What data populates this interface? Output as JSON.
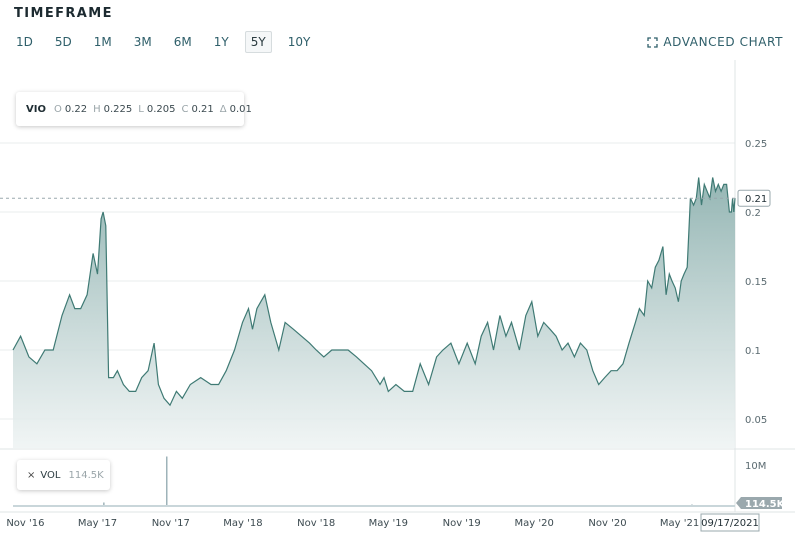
{
  "timeframe": {
    "title": "TIMEFRAME",
    "buttons": [
      "1D",
      "5D",
      "1M",
      "3M",
      "6M",
      "1Y",
      "5Y",
      "10Y"
    ],
    "active": "5Y"
  },
  "advanced_chart": {
    "label": "ADVANCED CHART",
    "icon": "expand-icon"
  },
  "ohlc": {
    "symbol": "VIO",
    "o_label": "O",
    "o_value": "0.22",
    "h_label": "H",
    "h_value": "0.225",
    "l_label": "L",
    "l_value": "0.205",
    "c_label": "C",
    "c_value": "0.21",
    "d_label": "Δ",
    "d_value": "0.01"
  },
  "volume_legend": {
    "close_icon": "×",
    "label": "VOL",
    "value": "114.5K"
  },
  "colors": {
    "line": "#3f7a74",
    "fill_top": "#8fb2b0",
    "fill_bottom": "#f2f6f6",
    "volume": "#9eb3b9",
    "grid": "#e8ecee"
  },
  "chart_data": {
    "type": "area",
    "price_axis": {
      "ticks": [
        0.05,
        0.1,
        0.15,
        0.2,
        0.25
      ],
      "tick_labels": [
        "0.05",
        "0.1",
        "0.15",
        "0.2",
        "0.25"
      ],
      "range": [
        0.03,
        0.28
      ]
    },
    "x_axis": {
      "labels": [
        "Nov '16",
        "May '17",
        "Nov '17",
        "May '18",
        "Nov '18",
        "May '19",
        "Nov '19",
        "May '20",
        "Nov '20",
        "May '21"
      ],
      "current_date_label": "09/17/2021"
    },
    "last_price": 0.21,
    "last_price_label": "0.21",
    "volume_axis": {
      "tick_label": "10M",
      "last_label": "114.5K"
    },
    "price_series": [
      [
        "2016-10-01",
        0.1
      ],
      [
        "2016-10-20",
        0.11
      ],
      [
        "2016-11-10",
        0.095
      ],
      [
        "2016-11-30",
        0.09
      ],
      [
        "2016-12-20",
        0.1
      ],
      [
        "2017-01-10",
        0.1
      ],
      [
        "2017-02-01",
        0.125
      ],
      [
        "2017-02-20",
        0.14
      ],
      [
        "2017-03-05",
        0.13
      ],
      [
        "2017-03-20",
        0.13
      ],
      [
        "2017-04-05",
        0.14
      ],
      [
        "2017-04-20",
        0.17
      ],
      [
        "2017-05-01",
        0.155
      ],
      [
        "2017-05-10",
        0.195
      ],
      [
        "2017-05-15",
        0.2
      ],
      [
        "2017-05-22",
        0.19
      ],
      [
        "2017-05-29",
        0.08
      ],
      [
        "2017-06-10",
        0.08
      ],
      [
        "2017-06-20",
        0.085
      ],
      [
        "2017-07-05",
        0.075
      ],
      [
        "2017-07-20",
        0.07
      ],
      [
        "2017-08-05",
        0.07
      ],
      [
        "2017-08-20",
        0.08
      ],
      [
        "2017-09-05",
        0.085
      ],
      [
        "2017-09-20",
        0.105
      ],
      [
        "2017-10-01",
        0.075
      ],
      [
        "2017-10-15",
        0.065
      ],
      [
        "2017-10-30",
        0.06
      ],
      [
        "2017-11-15",
        0.07
      ],
      [
        "2017-11-30",
        0.065
      ],
      [
        "2017-12-20",
        0.075
      ],
      [
        "2018-01-15",
        0.08
      ],
      [
        "2018-02-10",
        0.075
      ],
      [
        "2018-03-01",
        0.075
      ],
      [
        "2018-03-20",
        0.085
      ],
      [
        "2018-04-10",
        0.1
      ],
      [
        "2018-04-30",
        0.12
      ],
      [
        "2018-05-15",
        0.13
      ],
      [
        "2018-05-25",
        0.115
      ],
      [
        "2018-06-05",
        0.13
      ],
      [
        "2018-06-15",
        0.135
      ],
      [
        "2018-06-25",
        0.14
      ],
      [
        "2018-07-10",
        0.12
      ],
      [
        "2018-07-30",
        0.1
      ],
      [
        "2018-08-15",
        0.12
      ],
      [
        "2018-09-05",
        0.115
      ],
      [
        "2018-09-25",
        0.11
      ],
      [
        "2018-10-15",
        0.105
      ],
      [
        "2018-11-01",
        0.1
      ],
      [
        "2018-11-20",
        0.095
      ],
      [
        "2018-12-10",
        0.1
      ],
      [
        "2019-01-01",
        0.1
      ],
      [
        "2019-01-20",
        0.1
      ],
      [
        "2019-02-10",
        0.095
      ],
      [
        "2019-03-01",
        0.09
      ],
      [
        "2019-03-20",
        0.085
      ],
      [
        "2019-04-10",
        0.075
      ],
      [
        "2019-04-20",
        0.08
      ],
      [
        "2019-05-01",
        0.07
      ],
      [
        "2019-05-20",
        0.075
      ],
      [
        "2019-06-10",
        0.07
      ],
      [
        "2019-07-01",
        0.07
      ],
      [
        "2019-07-20",
        0.09
      ],
      [
        "2019-08-10",
        0.075
      ],
      [
        "2019-08-30",
        0.095
      ],
      [
        "2019-09-15",
        0.1
      ],
      [
        "2019-10-05",
        0.105
      ],
      [
        "2019-10-25",
        0.09
      ],
      [
        "2019-11-15",
        0.105
      ],
      [
        "2019-12-05",
        0.09
      ],
      [
        "2019-12-20",
        0.11
      ],
      [
        "2020-01-05",
        0.12
      ],
      [
        "2020-01-20",
        0.1
      ],
      [
        "2020-02-05",
        0.125
      ],
      [
        "2020-02-20",
        0.11
      ],
      [
        "2020-03-05",
        0.12
      ],
      [
        "2020-03-25",
        0.1
      ],
      [
        "2020-04-10",
        0.125
      ],
      [
        "2020-04-25",
        0.135
      ],
      [
        "2020-05-10",
        0.11
      ],
      [
        "2020-05-25",
        0.12
      ],
      [
        "2020-06-10",
        0.115
      ],
      [
        "2020-06-25",
        0.11
      ],
      [
        "2020-07-10",
        0.1
      ],
      [
        "2020-07-25",
        0.105
      ],
      [
        "2020-08-10",
        0.095
      ],
      [
        "2020-08-25",
        0.105
      ],
      [
        "2020-09-10",
        0.1
      ],
      [
        "2020-09-25",
        0.085
      ],
      [
        "2020-10-10",
        0.075
      ],
      [
        "2020-10-25",
        0.08
      ],
      [
        "2020-11-10",
        0.085
      ],
      [
        "2020-11-25",
        0.085
      ],
      [
        "2020-12-10",
        0.09
      ],
      [
        "2020-12-25",
        0.105
      ],
      [
        "2021-01-10",
        0.12
      ],
      [
        "2021-01-20",
        0.13
      ],
      [
        "2021-02-01",
        0.125
      ],
      [
        "2021-02-10",
        0.15
      ],
      [
        "2021-02-20",
        0.145
      ],
      [
        "2021-03-01",
        0.16
      ],
      [
        "2021-03-10",
        0.165
      ],
      [
        "2021-03-20",
        0.175
      ],
      [
        "2021-03-28",
        0.14
      ],
      [
        "2021-04-05",
        0.155
      ],
      [
        "2021-04-12",
        0.15
      ],
      [
        "2021-04-20",
        0.145
      ],
      [
        "2021-04-28",
        0.135
      ],
      [
        "2021-05-05",
        0.15
      ],
      [
        "2021-05-12",
        0.155
      ],
      [
        "2021-05-20",
        0.16
      ],
      [
        "2021-05-28",
        0.21
      ],
      [
        "2021-06-05",
        0.205
      ],
      [
        "2021-06-12",
        0.21
      ],
      [
        "2021-06-18",
        0.225
      ],
      [
        "2021-06-25",
        0.205
      ],
      [
        "2021-07-02",
        0.22
      ],
      [
        "2021-07-09",
        0.215
      ],
      [
        "2021-07-16",
        0.21
      ],
      [
        "2021-07-23",
        0.225
      ],
      [
        "2021-07-30",
        0.215
      ],
      [
        "2021-08-06",
        0.22
      ],
      [
        "2021-08-13",
        0.215
      ],
      [
        "2021-08-20",
        0.22
      ],
      [
        "2021-08-27",
        0.22
      ],
      [
        "2021-09-03",
        0.2
      ],
      [
        "2021-09-08",
        0.2
      ],
      [
        "2021-09-11",
        0.21
      ],
      [
        "2021-09-14",
        0.2
      ],
      [
        "2021-09-17",
        0.21
      ]
    ],
    "volume_series": [
      [
        "2016-11-01",
        80
      ],
      [
        "2017-01-15",
        60
      ],
      [
        "2017-04-20",
        350
      ],
      [
        "2017-05-15",
        900
      ],
      [
        "2017-06-10",
        200
      ],
      [
        "2017-09-01",
        150
      ],
      [
        "2017-10-20",
        10000
      ],
      [
        "2017-12-01",
        250
      ],
      [
        "2018-02-01",
        150
      ],
      [
        "2018-05-10",
        300
      ],
      [
        "2018-09-01",
        100
      ],
      [
        "2018-12-01",
        200
      ],
      [
        "2019-02-20",
        120
      ],
      [
        "2019-05-10",
        300
      ],
      [
        "2019-07-20",
        250
      ],
      [
        "2019-09-15",
        300
      ],
      [
        "2019-10-20",
        350
      ],
      [
        "2019-12-10",
        200
      ],
      [
        "2020-03-15",
        200
      ],
      [
        "2020-06-01",
        250
      ],
      [
        "2020-09-15",
        180
      ],
      [
        "2020-12-20",
        300
      ],
      [
        "2021-02-10",
        320
      ],
      [
        "2021-03-20",
        400
      ],
      [
        "2021-05-30",
        500
      ],
      [
        "2021-06-20",
        400
      ],
      [
        "2021-07-20",
        350
      ],
      [
        "2021-09-01",
        250
      ]
    ]
  }
}
